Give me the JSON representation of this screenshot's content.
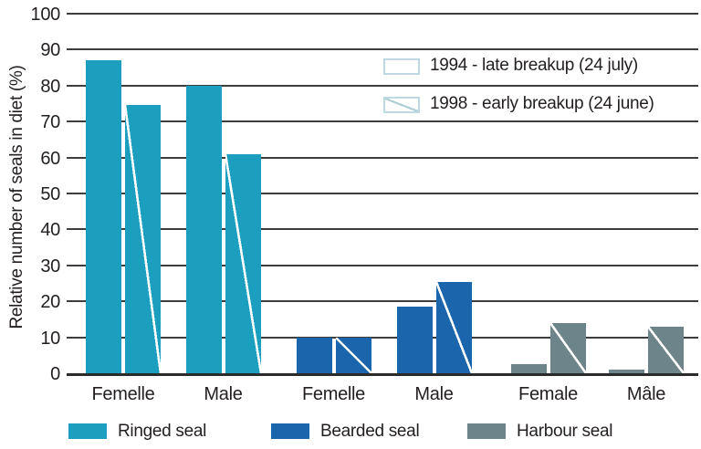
{
  "chart_data": {
    "type": "bar",
    "title": "",
    "ylabel": "Relative number of seals in diet (%)",
    "xlabel": "",
    "ylim": [
      0,
      100
    ],
    "ytick_step": 10,
    "grid": "horizontal",
    "legend_position": "top-right-inside and bottom",
    "series_legend": [
      {
        "label": "1994 - late breakup (24 july)",
        "pattern": "solid"
      },
      {
        "label": "1998 - early breakup (24 june)",
        "pattern": "diagonal-hatch"
      }
    ],
    "species_legend": [
      {
        "label": "Ringed seal",
        "color": "#1c9ebe"
      },
      {
        "label": "Bearded seal",
        "color": "#1a65ab"
      },
      {
        "label": "Harbour seal",
        "color": "#6d858a"
      }
    ],
    "series_names": [
      "1994",
      "1998"
    ],
    "groups": [
      {
        "category": "Femelle",
        "species": "Ringed seal",
        "color": "#1c9ebe",
        "values": [
          87,
          74.5
        ]
      },
      {
        "category": "Male",
        "species": "Ringed seal",
        "color": "#1c9ebe",
        "values": [
          80,
          61
        ]
      },
      {
        "category": "Femelle",
        "species": "Bearded seal",
        "color": "#1a65ab",
        "values": [
          10,
          10
        ]
      },
      {
        "category": "Male",
        "species": "Bearded seal",
        "color": "#1a65ab",
        "values": [
          18.5,
          25.5
        ]
      },
      {
        "category": "Female",
        "species": "Harbour seal",
        "color": "#6d858a",
        "values": [
          2.5,
          14
        ]
      },
      {
        "category": "Mâle",
        "species": "Harbour seal",
        "color": "#6d858a",
        "values": [
          1,
          13
        ]
      }
    ],
    "colors": {
      "gridline": "#3d3d3d",
      "axis_line": "#2b2b2b",
      "text": "#231f20",
      "hatch_line": "#ffffff",
      "legend_swatch_border": "#bfd9e2",
      "background": "#ffffff"
    }
  }
}
